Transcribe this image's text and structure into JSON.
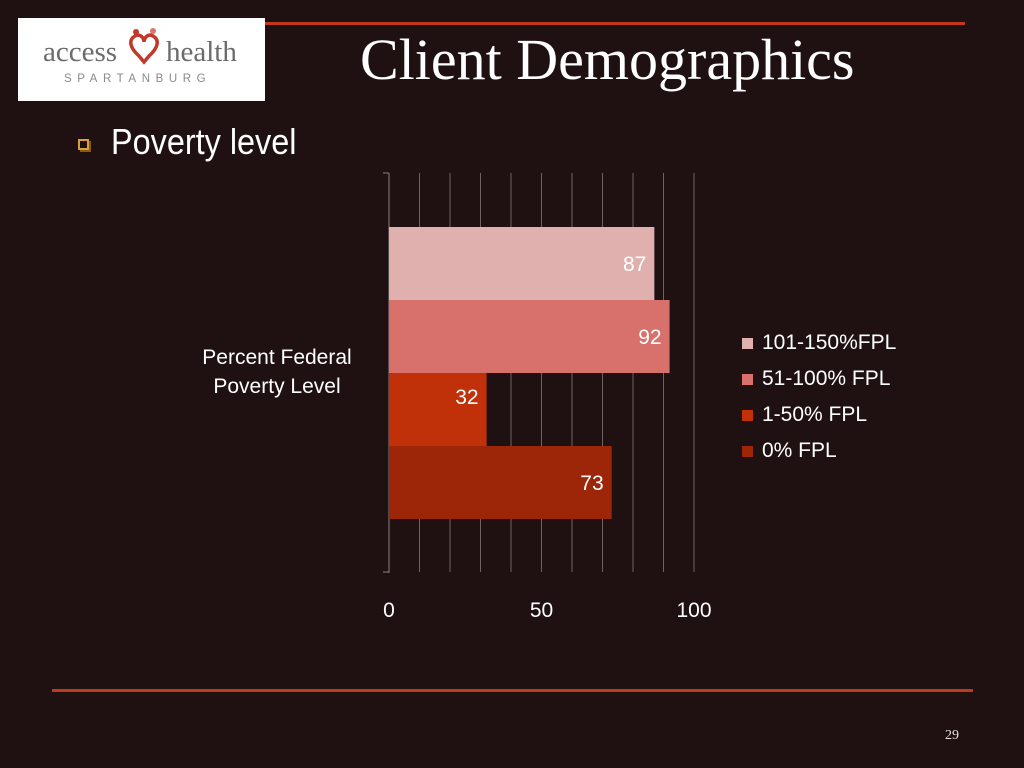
{
  "logo": {
    "word1": "access",
    "word2": "health",
    "sub": "SPARTANBURG",
    "heart_colors": [
      "#c0392b",
      "#e07070"
    ]
  },
  "slide": {
    "title": "Client Demographics",
    "bullet": "Poverty level",
    "page_number": "29",
    "accent": "#c0391b",
    "background": "#1f1112"
  },
  "chart_data": {
    "type": "bar",
    "orientation": "horizontal",
    "categories": [
      "Percent Federal Poverty Level"
    ],
    "series": [
      {
        "name": "101-150%FPL",
        "values": [
          87
        ],
        "color": "#e0b0ae"
      },
      {
        "name": "51-100% FPL",
        "values": [
          92
        ],
        "color": "#d8706b"
      },
      {
        "name": "1-50% FPL",
        "values": [
          32
        ],
        "color": "#c0310a"
      },
      {
        "name": "0% FPL",
        "values": [
          73
        ],
        "color": "#9e2608"
      }
    ],
    "xlim": [
      0,
      100
    ],
    "xticks": [
      "0",
      "50",
      "100"
    ],
    "grid": true,
    "legend": "right",
    "data_labels": true
  }
}
